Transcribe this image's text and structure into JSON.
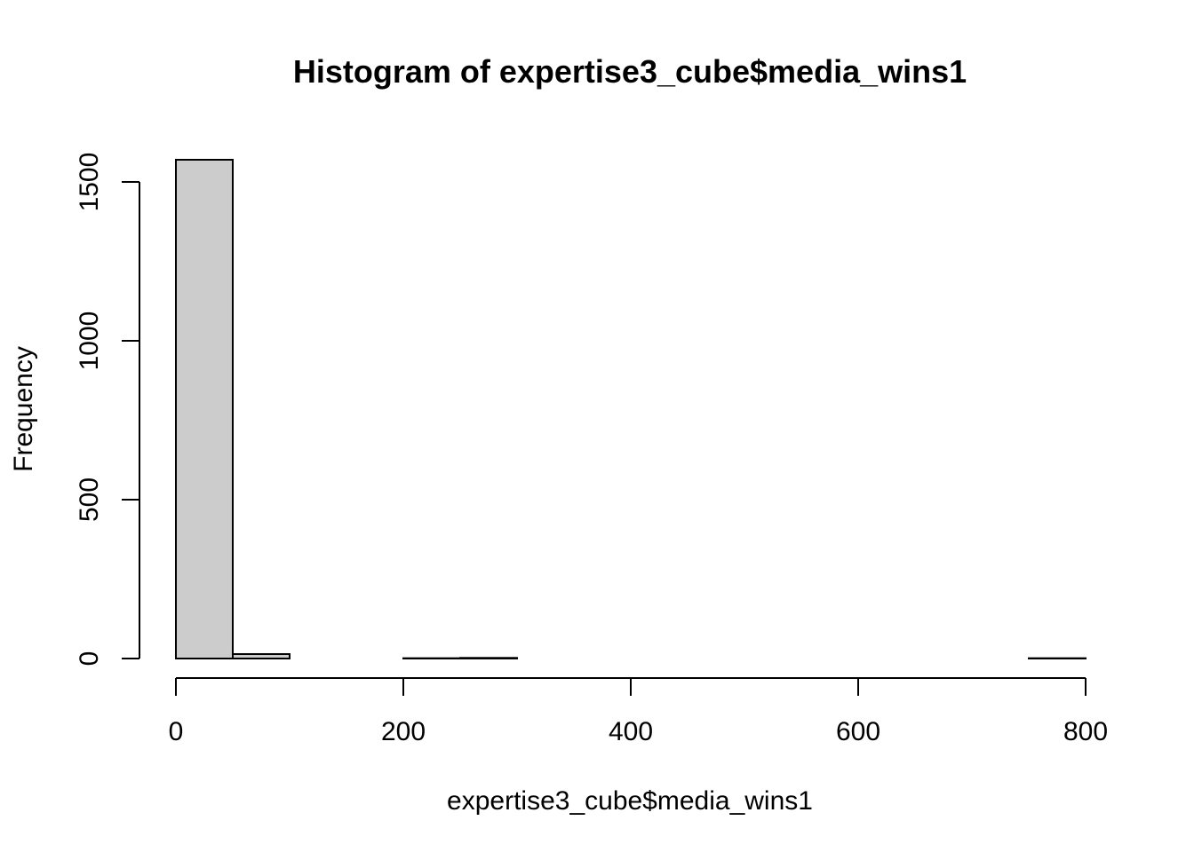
{
  "chart_data": {
    "type": "bar",
    "title": "Histogram of expertise3_cube$media_wins1",
    "xlabel": "expertise3_cube$media_wins1",
    "ylabel": "Frequency",
    "bin_width": 50,
    "bins": [
      {
        "start": 0,
        "end": 50,
        "count": 1570
      },
      {
        "start": 50,
        "end": 100,
        "count": 14
      },
      {
        "start": 100,
        "end": 150,
        "count": 0
      },
      {
        "start": 150,
        "end": 200,
        "count": 0
      },
      {
        "start": 200,
        "end": 250,
        "count": 1
      },
      {
        "start": 250,
        "end": 300,
        "count": 2
      },
      {
        "start": 300,
        "end": 350,
        "count": 0
      },
      {
        "start": 350,
        "end": 400,
        "count": 0
      },
      {
        "start": 400,
        "end": 450,
        "count": 0
      },
      {
        "start": 450,
        "end": 500,
        "count": 0
      },
      {
        "start": 500,
        "end": 550,
        "count": 0
      },
      {
        "start": 550,
        "end": 600,
        "count": 0
      },
      {
        "start": 600,
        "end": 650,
        "count": 0
      },
      {
        "start": 650,
        "end": 700,
        "count": 0
      },
      {
        "start": 700,
        "end": 750,
        "count": 0
      },
      {
        "start": 750,
        "end": 800,
        "count": 1
      }
    ],
    "xlim": [
      0,
      800
    ],
    "ylim": [
      0,
      1570
    ],
    "x_ticks": [
      0,
      200,
      400,
      600,
      800
    ],
    "x_tick_labels": [
      "0",
      "200",
      "400",
      "600",
      "800"
    ],
    "y_ticks": [
      0,
      500,
      1000,
      1500
    ],
    "y_tick_labels": [
      "0",
      "500",
      "1000",
      "1500"
    ],
    "grid": false,
    "legend": "none",
    "bar_fill": "#cccccc",
    "bar_stroke": "#000000"
  }
}
